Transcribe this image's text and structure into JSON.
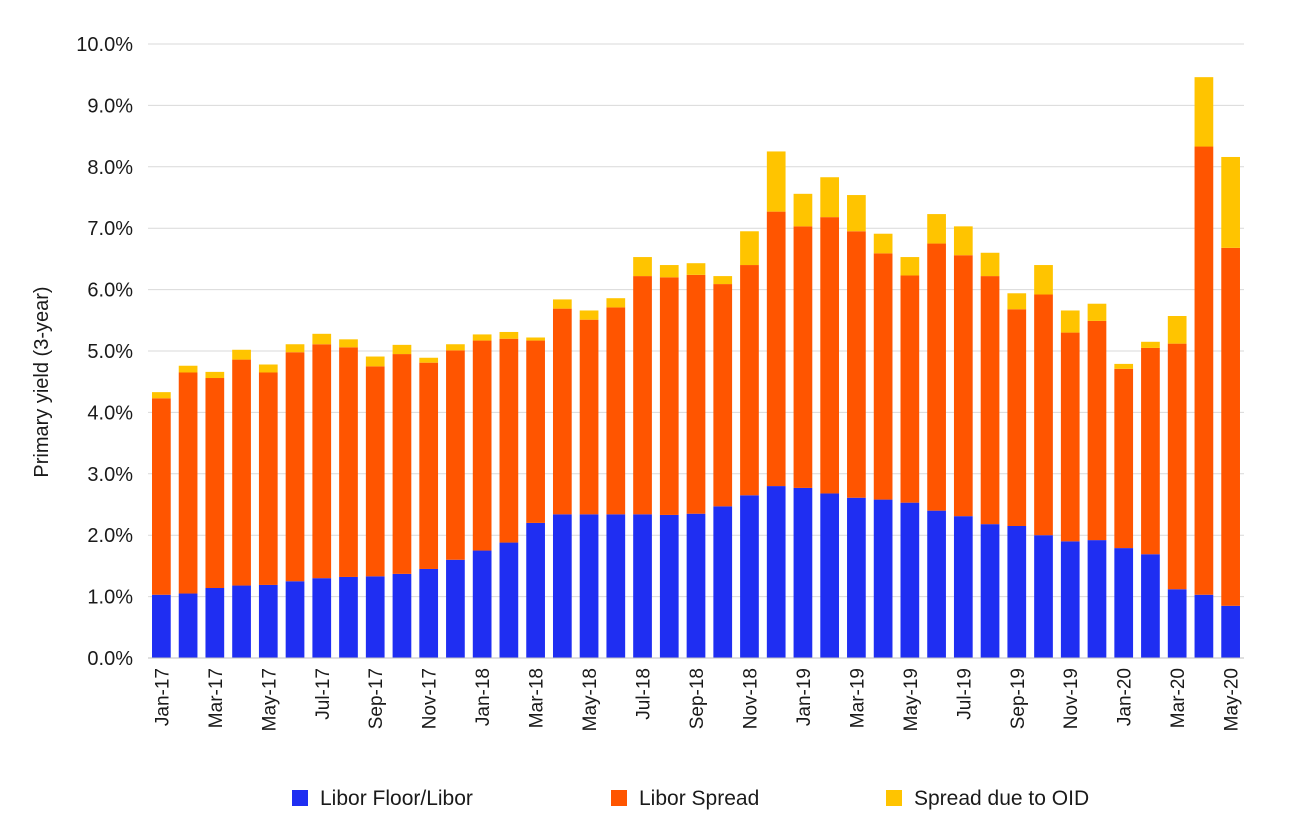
{
  "chart_data": {
    "type": "bar",
    "stacked": true,
    "title": "",
    "xlabel": "",
    "ylabel": "Primary yield (3-year)",
    "ylim": [
      0,
      10
    ],
    "y_ticks": [
      "0.0%",
      "1.0%",
      "2.0%",
      "3.0%",
      "4.0%",
      "5.0%",
      "6.0%",
      "7.0%",
      "8.0%",
      "9.0%",
      "10.0%"
    ],
    "grid": "horizontal",
    "legend_position": "bottom",
    "categories": [
      "Jan-17",
      "Feb-17",
      "Mar-17",
      "Apr-17",
      "May-17",
      "Jun-17",
      "Jul-17",
      "Aug-17",
      "Sep-17",
      "Oct-17",
      "Nov-17",
      "Dec-17",
      "Jan-18",
      "Feb-18",
      "Mar-18",
      "Apr-18",
      "May-18",
      "Jun-18",
      "Jul-18",
      "Aug-18",
      "Sep-18",
      "Oct-18",
      "Nov-18",
      "Dec-18",
      "Jan-19",
      "Feb-19",
      "Mar-19",
      "Apr-19",
      "May-19",
      "Jun-19",
      "Jul-19",
      "Aug-19",
      "Sep-19",
      "Oct-19",
      "Nov-19",
      "Dec-19",
      "Jan-20",
      "Feb-20",
      "Mar-20",
      "Apr-20",
      "May-20"
    ],
    "x_tick_labels": [
      "Jan-17",
      "Mar-17",
      "May-17",
      "Jul-17",
      "Sep-17",
      "Nov-17",
      "Jan-18",
      "Mar-18",
      "May-18",
      "Jul-18",
      "Sep-18",
      "Nov-18",
      "Jan-19",
      "Mar-19",
      "May-19",
      "Jul-19",
      "Sep-19",
      "Nov-19",
      "Jan-20",
      "Mar-20",
      "May-20"
    ],
    "series": [
      {
        "name": "Libor Floor/Libor",
        "color": "#1f2ef2",
        "values": [
          1.03,
          1.05,
          1.14,
          1.18,
          1.19,
          1.25,
          1.3,
          1.32,
          1.33,
          1.37,
          1.45,
          1.6,
          1.75,
          1.88,
          2.2,
          2.34,
          2.34,
          2.34,
          2.34,
          2.33,
          2.35,
          2.47,
          2.65,
          2.8,
          2.77,
          2.68,
          2.61,
          2.58,
          2.53,
          2.4,
          2.31,
          2.18,
          2.15,
          2.0,
          1.9,
          1.92,
          1.79,
          1.69,
          1.12,
          1.03,
          0.85
        ]
      },
      {
        "name": "Libor Spread",
        "color": "#ff5500",
        "values": [
          3.2,
          3.6,
          3.42,
          3.68,
          3.46,
          3.73,
          3.81,
          3.74,
          3.42,
          3.58,
          3.36,
          3.41,
          3.42,
          3.32,
          2.97,
          3.35,
          3.17,
          3.37,
          3.88,
          3.87,
          3.89,
          3.62,
          3.75,
          4.47,
          4.26,
          4.5,
          4.34,
          4.01,
          3.7,
          4.35,
          4.25,
          4.04,
          3.53,
          3.92,
          3.4,
          3.57,
          2.92,
          3.36,
          4.0,
          7.3,
          5.83
        ]
      },
      {
        "name": "Spread due to OID",
        "color": "#ffc400",
        "values": [
          0.1,
          0.11,
          0.1,
          0.16,
          0.13,
          0.13,
          0.17,
          0.13,
          0.16,
          0.15,
          0.08,
          0.1,
          0.1,
          0.11,
          0.05,
          0.15,
          0.15,
          0.15,
          0.31,
          0.2,
          0.19,
          0.13,
          0.55,
          0.98,
          0.53,
          0.65,
          0.59,
          0.32,
          0.3,
          0.48,
          0.47,
          0.38,
          0.26,
          0.48,
          0.36,
          0.28,
          0.08,
          0.1,
          0.45,
          1.13,
          1.48
        ]
      }
    ]
  }
}
